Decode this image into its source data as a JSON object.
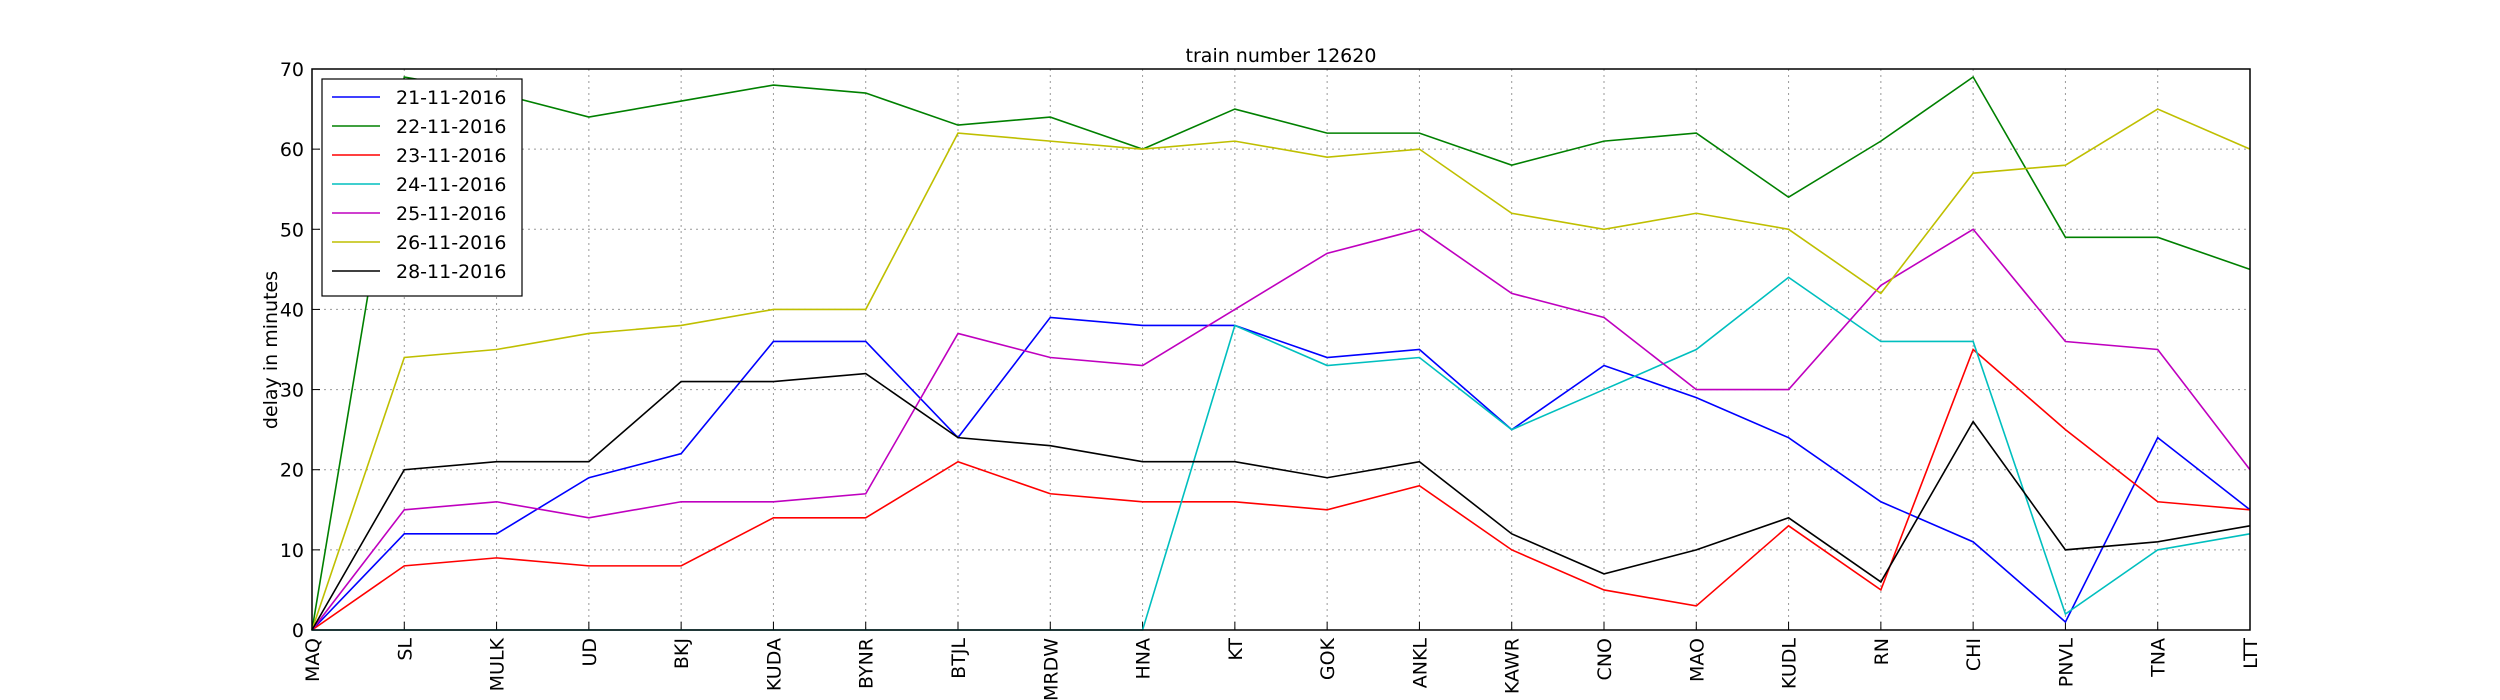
{
  "chart_data": {
    "type": "line",
    "title": "train number 12620",
    "y_label": "delay in minutes",
    "categories": [
      "MAQ",
      "SL",
      "MULK",
      "UD",
      "BKJ",
      "KUDA",
      "BYNR",
      "BTJL",
      "MRDW",
      "HNA",
      "KT",
      "GOK",
      "ANKL",
      "KAWR",
      "CNO",
      "MAO",
      "KUDL",
      "RN",
      "CHI",
      "PNVL",
      "TNA",
      "LTT"
    ],
    "series": [
      {
        "name": "21-11-2016",
        "color": "#0000ff",
        "values": [
          0,
          12,
          12,
          19,
          22,
          36,
          36,
          24,
          39,
          38,
          38,
          34,
          35,
          25,
          33,
          29,
          24,
          16,
          11,
          1,
          24,
          15
        ]
      },
      {
        "name": "22-11-2016",
        "color": "#008000",
        "values": [
          0,
          69,
          67,
          64,
          66,
          68,
          67,
          63,
          64,
          60,
          65,
          62,
          62,
          58,
          61,
          62,
          54,
          61,
          69,
          49,
          49,
          45
        ]
      },
      {
        "name": "23-11-2016",
        "color": "#ff0000",
        "values": [
          0,
          8,
          9,
          8,
          8,
          14,
          14,
          21,
          17,
          16,
          16,
          15,
          18,
          10,
          5,
          3,
          13,
          5,
          35,
          25,
          16,
          15
        ]
      },
      {
        "name": "24-11-2016",
        "color": "#00bfbf",
        "values": [
          0,
          0,
          0,
          0,
          0,
          0,
          0,
          0,
          0,
          0,
          38,
          33,
          34,
          25,
          30,
          35,
          44,
          36,
          36,
          2,
          10,
          12
        ]
      },
      {
        "name": "25-11-2016",
        "color": "#bf00bf",
        "values": [
          0,
          15,
          16,
          14,
          16,
          16,
          17,
          37,
          34,
          33,
          40,
          47,
          50,
          42,
          39,
          30,
          30,
          43,
          50,
          36,
          35,
          20
        ]
      },
      {
        "name": "26-11-2016",
        "color": "#bfbf00",
        "values": [
          0,
          34,
          35,
          37,
          38,
          40,
          40,
          62,
          61,
          60,
          61,
          59,
          60,
          52,
          50,
          52,
          50,
          42,
          57,
          58,
          65,
          60
        ]
      },
      {
        "name": "28-11-2016",
        "color": "#000000",
        "values": [
          0,
          20,
          21,
          21,
          31,
          31,
          32,
          24,
          23,
          21,
          21,
          19,
          21,
          12,
          7,
          10,
          14,
          6,
          26,
          10,
          11,
          13
        ]
      }
    ],
    "ylim": [
      0,
      70
    ],
    "yticks": [
      0,
      10,
      20,
      30,
      40,
      50,
      60,
      70
    ],
    "grid": true,
    "legend": "upper-left"
  }
}
